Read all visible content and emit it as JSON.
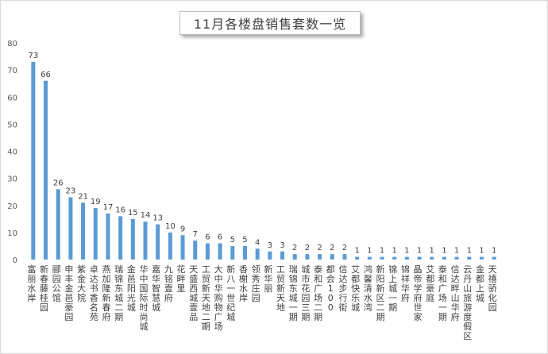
{
  "chart_data": {
    "type": "bar",
    "title": "11月各楼盘销售套数一览",
    "xlabel": "",
    "ylabel": "",
    "ylim": [
      0,
      80
    ],
    "yticks": [
      0,
      10,
      20,
      30,
      40,
      50,
      60,
      70,
      80
    ],
    "grid": false,
    "legend": "none",
    "bar_color": "#5b9bd5",
    "categories": [
      "富丽水岸",
      "新春藤桂园",
      "郦园公馆",
      "申丰金邑豪园",
      "紫金大院",
      "卓达书香名苑",
      "燕加隆新春府",
      "瑞锦东城二期",
      "金邑阳光城",
      "华中国际时尚城",
      "嘉华智慧城",
      "九铭壹府",
      "花畔里",
      "天盛西城壹品",
      "工贸新天地二期",
      "大中华购物广场",
      "新八一世纪城",
      "香榭水岸",
      "领秀庄园",
      "新华丽",
      "工贸新天地",
      "瑞锦东城一期",
      "城市花园三期",
      "泰和广场二期",
      "都会100",
      "信达步行街",
      "艾都快乐城",
      "鸿馨清水湾",
      "新阳新区二期",
      "锦上城一期",
      "锦祥华府",
      "晶帝学府世家",
      "艾都豪庭",
      "泰和广场一期",
      "信达畔山华府",
      "云丹山旅游度假区",
      "金都上城",
      "天禧骄化园"
    ],
    "values": [
      73,
      66,
      26,
      23,
      21,
      19,
      17,
      16,
      15,
      14,
      13,
      10,
      9,
      7,
      6,
      6,
      5,
      5,
      4,
      3,
      3,
      2,
      2,
      2,
      2,
      2,
      1,
      1,
      1,
      1,
      1,
      1,
      1,
      1,
      1,
      1,
      1,
      1
    ]
  }
}
